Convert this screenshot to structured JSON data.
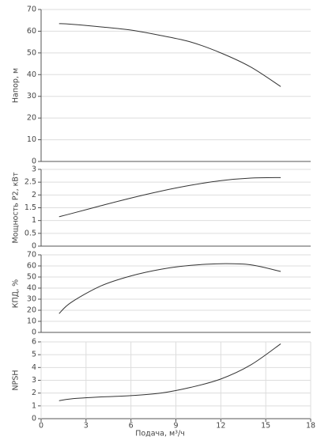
{
  "chart_data": [
    {
      "type": "line",
      "ylabel": "Напор, м",
      "x": [
        1.2,
        2,
        4,
        6,
        8,
        10,
        12,
        14,
        16
      ],
      "values": [
        63.5,
        63.2,
        62,
        60.5,
        58,
        55,
        50,
        43.5,
        34.5
      ],
      "color": "#333333",
      "xlim": [
        0,
        18
      ],
      "ylim": [
        0,
        70
      ],
      "yticks": [
        0,
        10,
        20,
        30,
        40,
        50,
        60,
        70
      ],
      "grid": true
    },
    {
      "type": "line",
      "ylabel": "Мощность P2, кВт",
      "x": [
        1.2,
        2,
        4,
        6,
        8,
        10,
        12,
        14,
        16
      ],
      "values": [
        1.15,
        1.27,
        1.58,
        1.88,
        2.15,
        2.38,
        2.56,
        2.66,
        2.68
      ],
      "color": "#333333",
      "xlim": [
        0,
        18
      ],
      "ylim": [
        0,
        3
      ],
      "yticks": [
        0,
        0.5,
        1,
        1.5,
        2,
        2.5,
        3
      ],
      "grid": true
    },
    {
      "type": "line",
      "ylabel": "КПД, %",
      "x": [
        1.2,
        2,
        4,
        6,
        8,
        10,
        12,
        14,
        16
      ],
      "values": [
        17,
        27,
        42,
        51,
        57,
        60.5,
        62,
        61,
        55
      ],
      "color": "#333333",
      "xlim": [
        0,
        18
      ],
      "ylim": [
        0,
        70
      ],
      "yticks": [
        0,
        10,
        20,
        30,
        40,
        50,
        60,
        70
      ],
      "grid": true
    },
    {
      "type": "line",
      "ylabel": "NPSH",
      "xlabel": "Подача, м³/ч",
      "x": [
        1.2,
        2,
        4,
        6,
        8,
        10,
        12,
        14,
        16
      ],
      "values": [
        1.4,
        1.55,
        1.7,
        1.8,
        2.0,
        2.45,
        3.1,
        4.2,
        5.85
      ],
      "color": "#333333",
      "xlim": [
        0,
        18
      ],
      "xticks": [
        0,
        3,
        6,
        9,
        12,
        15,
        18
      ],
      "ylim": [
        0,
        6
      ],
      "yticks": [
        0,
        1,
        2,
        3,
        4,
        5,
        6
      ],
      "grid": true
    }
  ]
}
